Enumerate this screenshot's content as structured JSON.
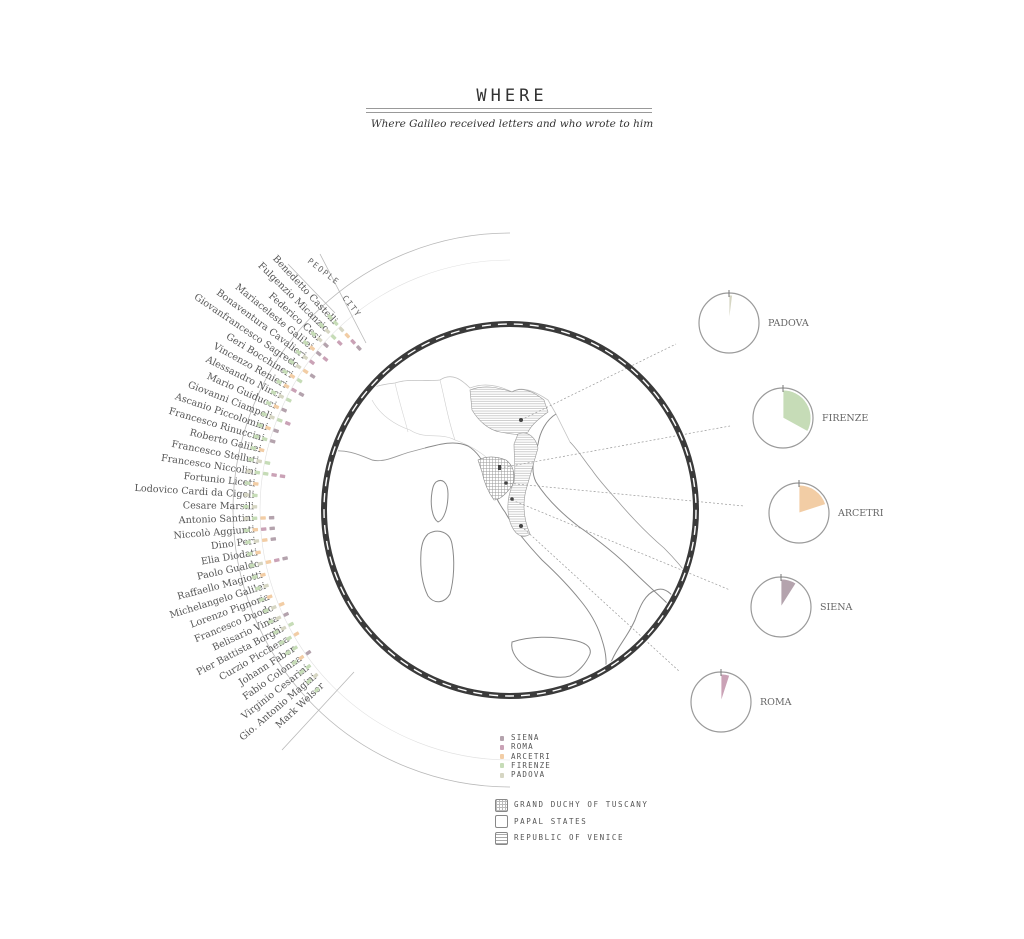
{
  "header": {
    "title": "WHERE",
    "subtitle": "Where Galileo received letters and who wrote to him"
  },
  "colors": {
    "siena": "#b4a3ad",
    "roma": "#caa2b6",
    "arcetri": "#f2cda5",
    "firenze": "#c6dcb7",
    "padova": "#d6d6c3",
    "ring": "#3a3a3a",
    "map_line": "#aaaaaa"
  },
  "axis_labels": {
    "people": "PEOPLE",
    "city": "CITY"
  },
  "people": [
    "Benedetto Castelli",
    "Fulgenzio Micanzio",
    "Federico Cesi",
    "Mariaceleste Galilei",
    "Bonaventura Cavalieri",
    "Giovanfrancesco Sagredo",
    "Geri Bocchineri",
    "Vincenzo Renieri",
    "Alessandro Ninci",
    "Mario Guiducci",
    "Giovanni Ciampoli",
    "Ascanio Piccolomini",
    "Francesco Rinuccini",
    "Roberto Galilei",
    "Francesco Stelluti",
    "Francesco Niccolini",
    "Fortunio Liceti",
    "Lodovico Cardi da Cigoli",
    "Cesare Marsili",
    "Antonio Santini",
    "Niccolò Aggiunti",
    "Dino Peri",
    "Elia Diodati",
    "Paolo Gualdo",
    "Raffaello Magiotti",
    "Michelangelo Galilei",
    "Lorenzo Pignoria",
    "Francesco Duodo",
    "Belisario Vinta",
    "Pier Battista Borghi",
    "Curzio Picchena",
    "Johann Faber",
    "Fabio Colonna",
    "Virginio Cesarini",
    "Gio. Antonio Magini",
    "Mark Welser"
  ],
  "letter_marks": [
    [
      "firenze",
      "firenze",
      "padova",
      "arcetri",
      "roma",
      "siena"
    ],
    [
      "firenze",
      "padova",
      "firenze",
      "roma"
    ],
    [
      "firenze",
      "padova",
      "siena"
    ],
    [
      "firenze",
      "arcetri",
      "siena",
      "roma"
    ],
    [
      "firenze",
      "padova",
      "roma"
    ],
    [
      "firenze",
      "padova",
      "arcetri",
      "siena"
    ],
    [
      "firenze",
      "arcetri",
      "firenze"
    ],
    [
      "firenze",
      "arcetri",
      "roma",
      "siena"
    ],
    [
      "firenze",
      "padova",
      "firenze"
    ],
    [
      "firenze",
      "arcetri",
      "siena"
    ],
    [
      "firenze",
      "padova",
      "firenze",
      "roma"
    ],
    [
      "firenze",
      "arcetri",
      "siena"
    ],
    [
      "firenze",
      "firenze",
      "siena"
    ],
    [
      "firenze",
      "arcetri"
    ],
    [
      "firenze",
      "padova",
      "firenze"
    ],
    [
      "padova",
      "firenze",
      "firenze",
      "roma",
      "roma"
    ],
    [
      "firenze",
      "arcetri"
    ],
    [
      "padova",
      "firenze"
    ],
    [
      "firenze",
      "padova"
    ],
    [
      "padova",
      "firenze",
      "arcetri",
      "siena"
    ],
    [
      "firenze",
      "arcetri",
      "roma",
      "siena"
    ],
    [
      "firenze",
      "padova",
      "arcetri",
      "siena"
    ],
    [
      "firenze",
      "arcetri"
    ],
    [
      "firenze",
      "padova",
      "arcetri",
      "roma",
      "siena"
    ],
    [
      "firenze",
      "arcetri"
    ],
    [
      "firenze",
      "padova"
    ],
    [
      "firenze",
      "arcetri"
    ],
    [
      "firenze",
      "padova",
      "arcetri"
    ],
    [
      "firenze",
      "padova",
      "siena"
    ],
    [
      "firenze",
      "padova",
      "firenze"
    ],
    [
      "firenze",
      "firenze",
      "arcetri"
    ],
    [
      "firenze",
      "firenze"
    ],
    [
      "firenze",
      "arcetri",
      "siena"
    ],
    [
      "firenze",
      "firenze"
    ],
    [
      "firenze",
      "padova"
    ],
    [
      "firenze"
    ]
  ],
  "cities": [
    {
      "name": "PADOVA",
      "key": "padova",
      "share": 0.02
    },
    {
      "name": "FIRENZE",
      "key": "firenze",
      "share": 0.33
    },
    {
      "name": "ARCETRI",
      "key": "arcetri",
      "share": 0.2
    },
    {
      "name": "SIENA",
      "key": "siena",
      "share": 0.09
    },
    {
      "name": "ROMA",
      "key": "roma",
      "share": 0.05
    }
  ],
  "legend_cities": [
    "SIENA",
    "ROMA",
    "ARCETRI",
    "FIRENZE",
    "PADOVA"
  ],
  "legend_states": [
    "GRAND DUCHY OF TUSCANY",
    "PAPAL STATES",
    "REPUBLIC OF VENICE"
  ]
}
